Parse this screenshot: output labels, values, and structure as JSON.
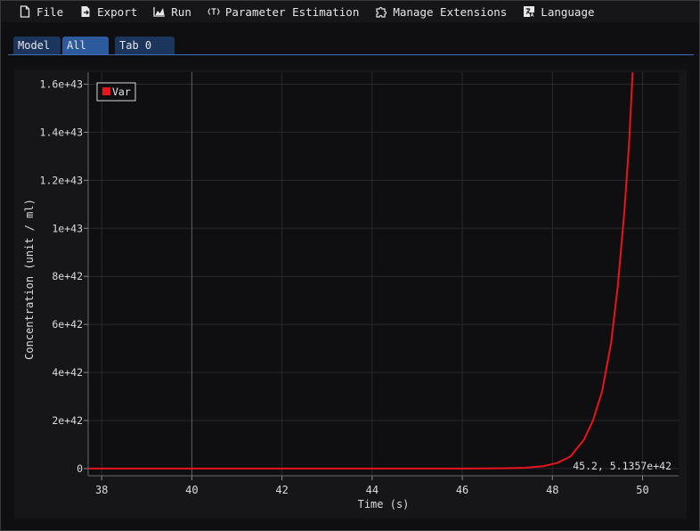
{
  "menu": {
    "items": [
      {
        "label": "File",
        "icon": "file-icon"
      },
      {
        "label": "Export",
        "icon": "export-icon"
      },
      {
        "label": "Run",
        "icon": "chart-icon"
      },
      {
        "label": "Parameter Estimation",
        "icon": "parameter-icon"
      },
      {
        "label": "Manage Extensions",
        "icon": "puzzle-icon"
      },
      {
        "label": "Language",
        "icon": "language-icon"
      }
    ]
  },
  "tabs": [
    {
      "label": "Model",
      "active": false
    },
    {
      "label": "All",
      "active": true
    },
    {
      "label": "Tab 0",
      "active": false
    }
  ],
  "colors": {
    "accent": "#2c5a9c",
    "tab": "#1c355d",
    "series": "#e8141e",
    "plot_bg": "#0f0f11",
    "grid": "#2a2a2e"
  },
  "chart_data": {
    "type": "line",
    "xlabel": "Time (s)",
    "ylabel": "Concentration (unit / ml)",
    "xlim": [
      37.7,
      50.8
    ],
    "ylim": [
      -3e+41,
      1.65e+43
    ],
    "xticks": [
      38,
      40,
      42,
      44,
      46,
      48,
      50
    ],
    "xtick_labels": [
      "38",
      "40",
      "42",
      "44",
      "46",
      "48",
      "50"
    ],
    "yticks": [
      0,
      2e+42,
      4e+42,
      6e+42,
      8e+42,
      1e+43,
      1.2e+43,
      1.4e+43,
      1.6e+43
    ],
    "ytick_labels": [
      "0",
      "2e+42",
      "4e+42",
      "6e+42",
      "8e+42",
      "1e+43",
      "1.2e+43",
      "1.4e+43",
      "1.6e+43"
    ],
    "grid": true,
    "legend_placement": "top-left",
    "series": [
      {
        "name": "Var",
        "color": "#e8141e",
        "x": [
          37.7,
          40,
          42,
          44,
          45,
          46,
          46.5,
          47,
          47.4,
          47.8,
          48.1,
          48.4,
          48.7,
          48.9,
          49.1,
          49.3,
          49.45,
          49.6,
          49.7,
          49.78
        ],
        "y": [
          0,
          0,
          0,
          0,
          0,
          2e+39,
          5e+39,
          1.5e+40,
          3.5e+40,
          1e+41,
          2.3e+41,
          5e+41,
          1.2e+42,
          2e+42,
          3.2e+42,
          5.2e+42,
          7.6e+42,
          1.08e+43,
          1.35e+43,
          1.65e+43
        ]
      }
    ],
    "vertical_marker_x": 40,
    "cursor_readout": "45.2, 5.1357e+42"
  }
}
